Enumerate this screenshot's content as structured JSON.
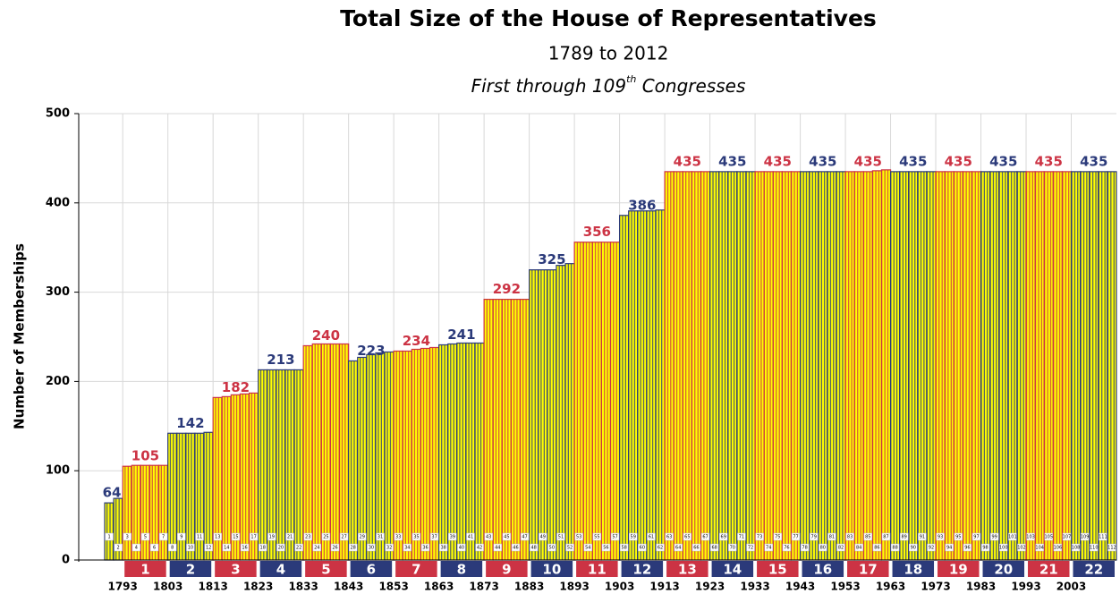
{
  "chart_data": {
    "type": "bar",
    "title": "Total Size of the House of Representatives",
    "subtitle": "1789 to 2012",
    "subtitle2": [
      "First through 109",
      "th",
      " Congresses"
    ],
    "y_label": "Number of Memberships",
    "categories": [
      1,
      2,
      3,
      4,
      5,
      6,
      7,
      8,
      9,
      10,
      11,
      12,
      13,
      14,
      15,
      16,
      17,
      18,
      19,
      20,
      21,
      22,
      23,
      24,
      25,
      26,
      27,
      28,
      29,
      30,
      31,
      32,
      33,
      34,
      35,
      36,
      37,
      38,
      39,
      40,
      41,
      42,
      43,
      44,
      45,
      46,
      47,
      48,
      49,
      50,
      51,
      52,
      53,
      54,
      55,
      56,
      57,
      58,
      59,
      60,
      61,
      62,
      63,
      64,
      65,
      66,
      67,
      68,
      69,
      70,
      71,
      72,
      73,
      74,
      75,
      76,
      77,
      78,
      79,
      80,
      81,
      82,
      83,
      84,
      85,
      86,
      87,
      88,
      89,
      90,
      91,
      92,
      93,
      94,
      95,
      96,
      97,
      98,
      99,
      100,
      101,
      102,
      103,
      104,
      105,
      106,
      107,
      108,
      109,
      110,
      111,
      112
    ],
    "values": [
      64,
      69,
      105,
      106,
      106,
      106,
      106,
      142,
      142,
      142,
      142,
      143,
      182,
      183,
      185,
      186,
      187,
      213,
      213,
      213,
      213,
      213,
      240,
      242,
      242,
      242,
      242,
      223,
      227,
      230,
      232,
      233,
      234,
      234,
      236,
      237,
      238,
      241,
      242,
      243,
      243,
      243,
      292,
      292,
      292,
      292,
      292,
      325,
      325,
      325,
      330,
      332,
      356,
      356,
      356,
      356,
      356,
      386,
      391,
      391,
      391,
      392,
      435,
      435,
      435,
      435,
      435,
      435,
      435,
      435,
      435,
      435,
      435,
      435,
      435,
      435,
      435,
      435,
      435,
      435,
      435,
      435,
      435,
      435,
      435,
      436,
      437,
      435,
      435,
      435,
      435,
      435,
      435,
      435,
      435,
      435,
      435,
      435,
      435,
      435,
      435,
      435,
      435,
      435,
      435,
      435,
      435,
      435,
      435,
      435,
      435,
      435
    ],
    "group_labels": [
      64,
      105,
      142,
      182,
      213,
      240,
      223,
      234,
      241,
      292,
      325,
      356,
      386,
      435,
      435,
      435,
      435,
      435,
      435,
      435,
      435,
      435,
      435
    ],
    "decades": [
      1,
      2,
      3,
      4,
      5,
      6,
      7,
      8,
      9,
      10,
      11,
      12,
      13,
      14,
      15,
      16,
      17,
      18,
      19,
      20,
      21,
      22
    ],
    "decade_years": [
      1793,
      1803,
      1813,
      1823,
      1833,
      1843,
      1853,
      1863,
      1873,
      1883,
      1893,
      1903,
      1913,
      1923,
      1933,
      1943,
      1953,
      1963,
      1973,
      1983,
      1993,
      2003
    ],
    "colors": [
      "#2b3a7a",
      "#cc3344"
    ],
    "bar_fill": "#ffff00",
    "ylim": [
      0,
      500
    ],
    "yticks": [
      0,
      100,
      200,
      300,
      400,
      500
    ],
    "grid": true
  }
}
